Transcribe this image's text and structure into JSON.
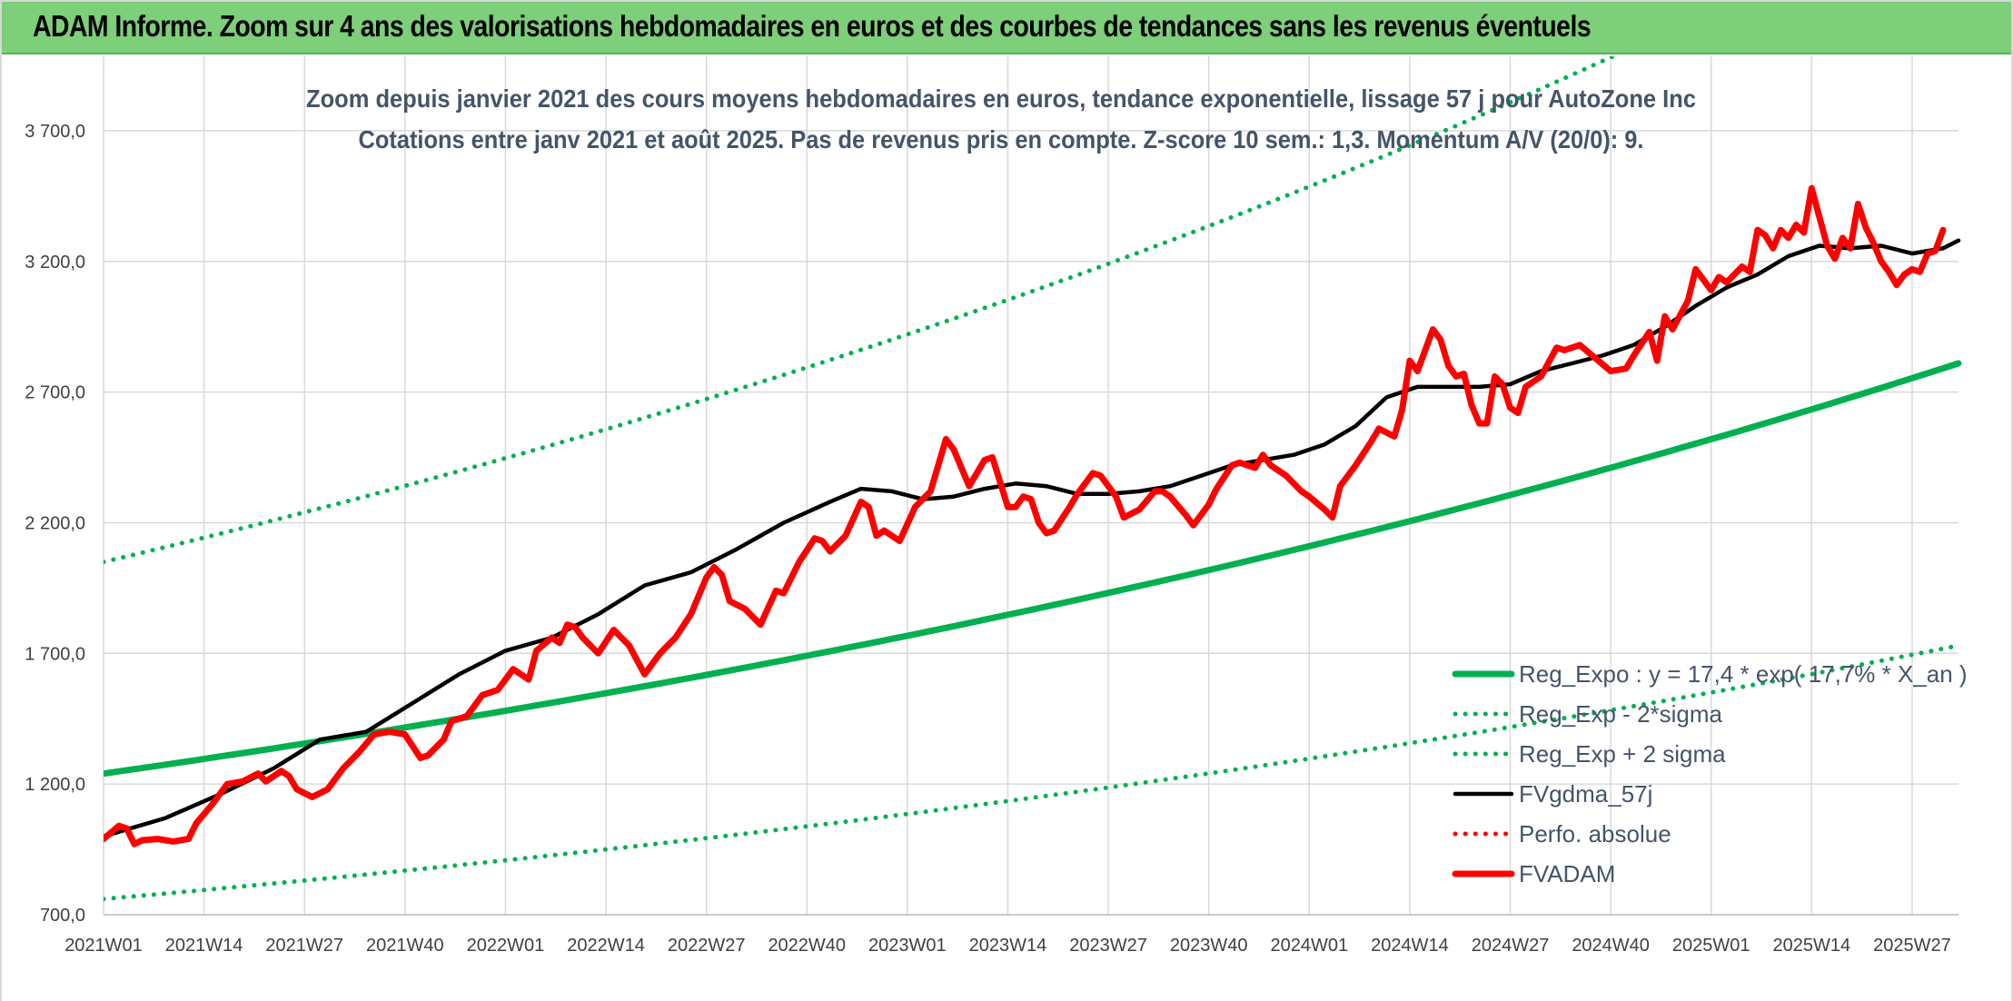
{
  "banner": {
    "title": "ADAM Informe. Zoom sur 4 ans des valorisations hebdomadaires en euros et des courbes de tendances sans les revenus éventuels"
  },
  "colors": {
    "banner_bg": "#7dcf7a",
    "green": "#00b050",
    "black": "#000000",
    "red": "#ff0000",
    "grid": "#d9d9d9"
  },
  "chart_data": {
    "type": "line",
    "title_lines": [
      "Zoom depuis janvier 2021 des cours moyens hebdomadaires en euros, tendance exponentielle, lissage 57 j pour AutoZone Inc",
      "Cotations entre janv 2021 et août 2025. Pas de revenus pris en compte. Z-score 10 sem.: 1,3. Momentum A/V (20/0): 9."
    ],
    "xlabel": "",
    "ylabel": "",
    "ylim": [
      700,
      3950
    ],
    "y_ticks": [
      700,
      1200,
      1700,
      2200,
      2700,
      3200,
      3700
    ],
    "y_tick_labels": [
      "700,0",
      "1 200,0",
      "1 700,0",
      "2 200,0",
      "2 700,0",
      "3 200,0",
      "3 700,0"
    ],
    "x_tick_labels": [
      "2021W01",
      "2021W14",
      "2021W27",
      "2021W40",
      "2022W01",
      "2022W14",
      "2022W27",
      "2022W40",
      "2023W01",
      "2023W14",
      "2023W27",
      "2023W40",
      "2024W01",
      "2024W14",
      "2024W27",
      "2024W40",
      "2025W01",
      "2025W14",
      "2025W27"
    ],
    "x_tick_weeks": [
      0,
      13,
      26,
      39,
      52,
      65,
      78,
      91,
      104,
      117,
      130,
      143,
      156,
      169,
      182,
      195,
      208,
      221,
      234
    ],
    "x_range_weeks": [
      0,
      240
    ],
    "grid": true,
    "legend_position": "bottom-right",
    "series": [
      {
        "name": "Reg_Expo : y = 17,4 * exp( 17,7% *  X_an )",
        "style": "solid-thick",
        "color": "#00b050",
        "points": [
          [
            0,
            1240
          ],
          [
            240,
            2810
          ]
        ]
      },
      {
        "name": "Reg_Exp - 2*sigma",
        "style": "dotted",
        "color": "#00b050",
        "points": [
          [
            0,
            760
          ],
          [
            240,
            1730
          ]
        ]
      },
      {
        "name": "Reg_Exp + 2 sigma",
        "style": "dotted",
        "color": "#00b050",
        "points": [
          [
            0,
            2050
          ],
          [
            240,
            4640
          ]
        ]
      },
      {
        "name": "FVgdma_57j",
        "style": "solid",
        "color": "#000000",
        "points": [
          [
            0,
            1000
          ],
          [
            8,
            1070
          ],
          [
            15,
            1160
          ],
          [
            22,
            1260
          ],
          [
            28,
            1370
          ],
          [
            34,
            1400
          ],
          [
            40,
            1510
          ],
          [
            46,
            1620
          ],
          [
            52,
            1710
          ],
          [
            58,
            1760
          ],
          [
            64,
            1850
          ],
          [
            70,
            1960
          ],
          [
            76,
            2010
          ],
          [
            82,
            2100
          ],
          [
            88,
            2200
          ],
          [
            94,
            2280
          ],
          [
            98,
            2330
          ],
          [
            102,
            2320
          ],
          [
            106,
            2290
          ],
          [
            110,
            2300
          ],
          [
            114,
            2330
          ],
          [
            118,
            2350
          ],
          [
            122,
            2340
          ],
          [
            126,
            2310
          ],
          [
            130,
            2310
          ],
          [
            134,
            2320
          ],
          [
            138,
            2340
          ],
          [
            142,
            2380
          ],
          [
            146,
            2420
          ],
          [
            150,
            2440
          ],
          [
            154,
            2460
          ],
          [
            158,
            2500
          ],
          [
            162,
            2570
          ],
          [
            166,
            2680
          ],
          [
            170,
            2720
          ],
          [
            174,
            2720
          ],
          [
            178,
            2720
          ],
          [
            182,
            2730
          ],
          [
            186,
            2780
          ],
          [
            190,
            2810
          ],
          [
            194,
            2840
          ],
          [
            198,
            2880
          ],
          [
            202,
            2950
          ],
          [
            206,
            3030
          ],
          [
            210,
            3100
          ],
          [
            214,
            3150
          ],
          [
            218,
            3220
          ],
          [
            222,
            3260
          ],
          [
            226,
            3250
          ],
          [
            230,
            3260
          ],
          [
            234,
            3230
          ],
          [
            238,
            3250
          ],
          [
            240,
            3280
          ]
        ]
      },
      {
        "name": "Perfo. absolue",
        "style": "dotted",
        "color": "#ff0000",
        "points": []
      },
      {
        "name": "FVADAM",
        "style": "solid-thick",
        "color": "#ff0000",
        "points": [
          [
            0,
            990
          ],
          [
            2,
            1040
          ],
          [
            3,
            1030
          ],
          [
            4,
            970
          ],
          [
            5,
            985
          ],
          [
            7,
            990
          ],
          [
            9,
            980
          ],
          [
            11,
            990
          ],
          [
            12,
            1050
          ],
          [
            14,
            1120
          ],
          [
            16,
            1200
          ],
          [
            18,
            1210
          ],
          [
            20,
            1240
          ],
          [
            21,
            1210
          ],
          [
            23,
            1250
          ],
          [
            24,
            1230
          ],
          [
            25,
            1180
          ],
          [
            27,
            1150
          ],
          [
            29,
            1180
          ],
          [
            31,
            1260
          ],
          [
            33,
            1320
          ],
          [
            35,
            1390
          ],
          [
            37,
            1400
          ],
          [
            39,
            1390
          ],
          [
            41,
            1300
          ],
          [
            42,
            1310
          ],
          [
            44,
            1370
          ],
          [
            45,
            1440
          ],
          [
            47,
            1460
          ],
          [
            49,
            1540
          ],
          [
            51,
            1560
          ],
          [
            53,
            1640
          ],
          [
            55,
            1600
          ],
          [
            56,
            1710
          ],
          [
            58,
            1760
          ],
          [
            59,
            1740
          ],
          [
            60,
            1810
          ],
          [
            61,
            1800
          ],
          [
            62,
            1760
          ],
          [
            64,
            1700
          ],
          [
            66,
            1790
          ],
          [
            68,
            1730
          ],
          [
            70,
            1620
          ],
          [
            72,
            1700
          ],
          [
            74,
            1760
          ],
          [
            76,
            1850
          ],
          [
            78,
            1990
          ],
          [
            79,
            2030
          ],
          [
            80,
            2000
          ],
          [
            81,
            1900
          ],
          [
            83,
            1870
          ],
          [
            85,
            1810
          ],
          [
            87,
            1940
          ],
          [
            88,
            1930
          ],
          [
            90,
            2050
          ],
          [
            92,
            2140
          ],
          [
            93,
            2130
          ],
          [
            94,
            2090
          ],
          [
            96,
            2150
          ],
          [
            98,
            2280
          ],
          [
            99,
            2260
          ],
          [
            100,
            2150
          ],
          [
            101,
            2170
          ],
          [
            103,
            2130
          ],
          [
            105,
            2260
          ],
          [
            107,
            2320
          ],
          [
            109,
            2520
          ],
          [
            110,
            2480
          ],
          [
            112,
            2340
          ],
          [
            114,
            2440
          ],
          [
            115,
            2450
          ],
          [
            117,
            2260
          ],
          [
            118,
            2260
          ],
          [
            119,
            2300
          ],
          [
            120,
            2290
          ],
          [
            121,
            2200
          ],
          [
            122,
            2160
          ],
          [
            123,
            2170
          ],
          [
            125,
            2260
          ],
          [
            126,
            2310
          ],
          [
            128,
            2390
          ],
          [
            129,
            2380
          ],
          [
            130,
            2340
          ],
          [
            131,
            2300
          ],
          [
            132,
            2220
          ],
          [
            134,
            2250
          ],
          [
            136,
            2320
          ],
          [
            137,
            2320
          ],
          [
            138,
            2300
          ],
          [
            140,
            2230
          ],
          [
            141,
            2190
          ],
          [
            143,
            2270
          ],
          [
            144,
            2330
          ],
          [
            146,
            2420
          ],
          [
            147,
            2430
          ],
          [
            149,
            2410
          ],
          [
            150,
            2460
          ],
          [
            151,
            2420
          ],
          [
            153,
            2380
          ],
          [
            155,
            2320
          ],
          [
            156,
            2300
          ],
          [
            158,
            2250
          ],
          [
            159,
            2220
          ],
          [
            160,
            2340
          ],
          [
            162,
            2420
          ],
          [
            164,
            2510
          ],
          [
            165,
            2560
          ],
          [
            167,
            2530
          ],
          [
            168,
            2630
          ],
          [
            169,
            2820
          ],
          [
            170,
            2780
          ],
          [
            171,
            2860
          ],
          [
            172,
            2940
          ],
          [
            173,
            2900
          ],
          [
            174,
            2800
          ],
          [
            175,
            2760
          ],
          [
            176,
            2770
          ],
          [
            177,
            2650
          ],
          [
            178,
            2580
          ],
          [
            179,
            2580
          ],
          [
            180,
            2760
          ],
          [
            181,
            2730
          ],
          [
            182,
            2640
          ],
          [
            183,
            2620
          ],
          [
            184,
            2720
          ],
          [
            186,
            2760
          ],
          [
            188,
            2870
          ],
          [
            189,
            2860
          ],
          [
            191,
            2880
          ],
          [
            193,
            2830
          ],
          [
            195,
            2780
          ],
          [
            197,
            2790
          ],
          [
            198,
            2840
          ],
          [
            200,
            2930
          ],
          [
            201,
            2820
          ],
          [
            202,
            2990
          ],
          [
            203,
            2940
          ],
          [
            205,
            3050
          ],
          [
            206,
            3170
          ],
          [
            208,
            3090
          ],
          [
            209,
            3140
          ],
          [
            210,
            3120
          ],
          [
            212,
            3180
          ],
          [
            213,
            3160
          ],
          [
            214,
            3320
          ],
          [
            215,
            3300
          ],
          [
            216,
            3250
          ],
          [
            217,
            3320
          ],
          [
            218,
            3290
          ],
          [
            219,
            3340
          ],
          [
            220,
            3310
          ],
          [
            221,
            3480
          ],
          [
            222,
            3370
          ],
          [
            223,
            3260
          ],
          [
            224,
            3210
          ],
          [
            225,
            3290
          ],
          [
            226,
            3250
          ],
          [
            227,
            3420
          ],
          [
            228,
            3330
          ],
          [
            229,
            3270
          ],
          [
            230,
            3200
          ],
          [
            231,
            3160
          ],
          [
            232,
            3110
          ],
          [
            233,
            3150
          ],
          [
            234,
            3170
          ],
          [
            235,
            3160
          ],
          [
            236,
            3230
          ],
          [
            237,
            3240
          ],
          [
            238,
            3320
          ]
        ]
      }
    ]
  }
}
